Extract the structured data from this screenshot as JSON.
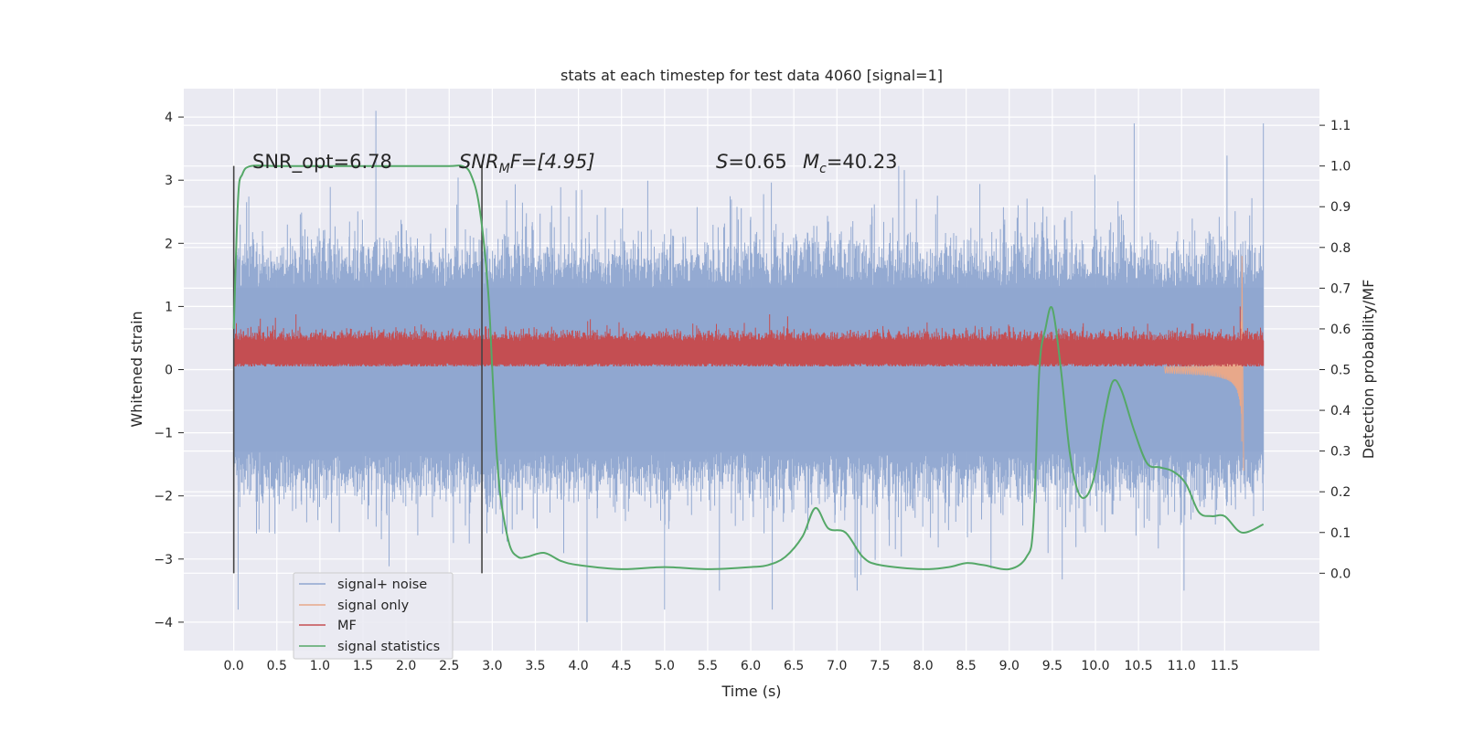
{
  "chart_data": {
    "type": "line",
    "title": "stats at each timestep for test data 4060 [signal=1]",
    "xlabel": "Time (s)",
    "ylabel_left": "Whitened strain",
    "ylabel_right": "Detection probability/MF",
    "xlim": [
      -0.58,
      12.6
    ],
    "ylim_left": [
      -4.45,
      4.45
    ],
    "ylim_right": [
      -0.19,
      1.19
    ],
    "x_ticks": [
      "0.0",
      "0.5",
      "1.0",
      "1.5",
      "2.0",
      "2.5",
      "3.0",
      "3.5",
      "4.0",
      "4.5",
      "5.0",
      "5.5",
      "6.0",
      "6.5",
      "7.0",
      "7.5",
      "8.0",
      "8.5",
      "9.0",
      "9.5",
      "10.0",
      "10.5",
      "11.0",
      "11.5"
    ],
    "y_ticks_left": [
      "4",
      "3",
      "2",
      "1",
      "0",
      "−1",
      "−2",
      "−3",
      "−4"
    ],
    "y_ticks_right": [
      "1.1",
      "1.0",
      "0.9",
      "0.8",
      "0.7",
      "0.6",
      "0.5",
      "0.4",
      "0.3",
      "0.2",
      "0.1",
      "0.0"
    ],
    "grid": true,
    "legend_position": "lower-left",
    "annotations": {
      "snr_opt": "SNR_opt=6.78",
      "snr_mf_sym": "SNR",
      "snr_mf_sub": "M",
      "snr_mf_rest": "F=[4.95]",
      "s_sym": "S",
      "s_val": "=0.65",
      "mc_sym": "M",
      "mc_sub": "c",
      "mc_val": "=40.23"
    },
    "vertical_markers": [
      0.0,
      2.88
    ],
    "series": [
      {
        "name": "signal+ noise",
        "color": "#8fa6d0",
        "axis": "left",
        "kind": "noise",
        "x_range": [
          0.0,
          11.95
        ],
        "core_band": [
          -1.3,
          1.3
        ],
        "peak_max": 4.1,
        "peak_min": -4.0
      },
      {
        "name": "signal only",
        "color": "#e8a88a",
        "axis": "left",
        "kind": "chirp",
        "x_range": [
          10.8,
          11.7
        ],
        "peak_max": 1.8,
        "peak_min": -1.6
      },
      {
        "name": "MF",
        "color": "#c44e52",
        "axis": "left",
        "kind": "mf",
        "x_range": [
          0.0,
          11.95
        ],
        "baseline": 0.25,
        "band": [
          0.05,
          0.6
        ],
        "peak_max": 0.95,
        "spike_x": 11.68,
        "spike_y": 1.0
      },
      {
        "name": "signal statistics",
        "color": "#55a868",
        "axis": "right",
        "kind": "line",
        "x": [
          0.0,
          0.05,
          0.1,
          0.2,
          0.5,
          1.0,
          2.0,
          2.5,
          2.65,
          2.75,
          2.85,
          2.95,
          3.0,
          3.05,
          3.1,
          3.2,
          3.3,
          3.4,
          3.6,
          3.8,
          4.0,
          4.5,
          5.0,
          5.5,
          6.0,
          6.2,
          6.4,
          6.6,
          6.75,
          6.9,
          7.1,
          7.3,
          7.5,
          8.0,
          8.3,
          8.5,
          8.7,
          9.0,
          9.2,
          9.28,
          9.35,
          9.42,
          9.5,
          9.6,
          9.7,
          9.8,
          9.9,
          10.0,
          10.1,
          10.2,
          10.3,
          10.45,
          10.6,
          10.75,
          10.9,
          11.05,
          11.2,
          11.35,
          11.5,
          11.7,
          11.95
        ],
        "y": [
          0.6,
          0.92,
          0.98,
          1.0,
          1.0,
          1.0,
          1.0,
          1.0,
          1.0,
          0.98,
          0.9,
          0.7,
          0.5,
          0.3,
          0.18,
          0.07,
          0.04,
          0.04,
          0.05,
          0.03,
          0.02,
          0.01,
          0.015,
          0.01,
          0.015,
          0.02,
          0.04,
          0.09,
          0.16,
          0.11,
          0.1,
          0.04,
          0.02,
          0.01,
          0.015,
          0.025,
          0.02,
          0.01,
          0.04,
          0.12,
          0.5,
          0.6,
          0.65,
          0.5,
          0.3,
          0.2,
          0.19,
          0.25,
          0.38,
          0.47,
          0.45,
          0.35,
          0.27,
          0.26,
          0.25,
          0.22,
          0.15,
          0.14,
          0.14,
          0.1,
          0.12
        ]
      }
    ]
  }
}
